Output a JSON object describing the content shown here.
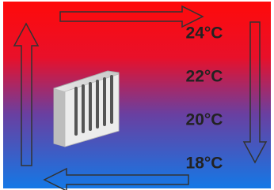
{
  "labels": [
    "24°C",
    "22°C",
    "20°C",
    "18°C"
  ]
}
